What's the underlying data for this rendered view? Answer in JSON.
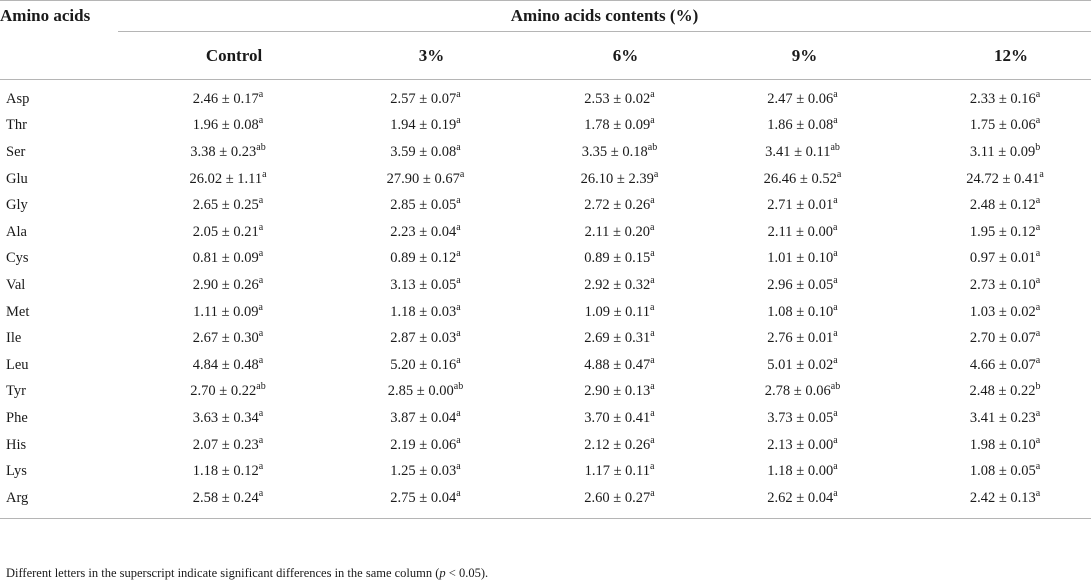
{
  "table": {
    "row_header": "Amino acids",
    "group_header": "Amino acids contents (%)",
    "columns": [
      "Control",
      "3%",
      "6%",
      "9%",
      "12%"
    ],
    "rows": [
      {
        "name": "Asp",
        "cells": [
          {
            "v": "2.46 ± 0.17",
            "s": "a"
          },
          {
            "v": "2.57 ± 0.07",
            "s": "a"
          },
          {
            "v": "2.53 ± 0.02",
            "s": "a"
          },
          {
            "v": "2.47 ± 0.06",
            "s": "a"
          },
          {
            "v": "2.33 ± 0.16",
            "s": "a"
          }
        ]
      },
      {
        "name": "Thr",
        "cells": [
          {
            "v": "1.96 ± 0.08",
            "s": "a"
          },
          {
            "v": "1.94 ± 0.19",
            "s": "a"
          },
          {
            "v": "1.78 ± 0.09",
            "s": "a"
          },
          {
            "v": "1.86 ± 0.08",
            "s": "a"
          },
          {
            "v": "1.75 ± 0.06",
            "s": "a"
          }
        ]
      },
      {
        "name": "Ser",
        "cells": [
          {
            "v": "3.38 ± 0.23",
            "s": "ab"
          },
          {
            "v": "3.59 ± 0.08",
            "s": "a"
          },
          {
            "v": "3.35 ± 0.18",
            "s": "ab"
          },
          {
            "v": "3.41 ± 0.11",
            "s": "ab"
          },
          {
            "v": "3.11 ± 0.09",
            "s": "b"
          }
        ]
      },
      {
        "name": "Glu",
        "cells": [
          {
            "v": "26.02 ± 1.11",
            "s": "a"
          },
          {
            "v": "27.90 ± 0.67",
            "s": "a"
          },
          {
            "v": "26.10 ± 2.39",
            "s": "a"
          },
          {
            "v": "26.46 ± 0.52",
            "s": "a"
          },
          {
            "v": "24.72 ± 0.41",
            "s": "a"
          }
        ]
      },
      {
        "name": "Gly",
        "cells": [
          {
            "v": "2.65 ± 0.25",
            "s": "a"
          },
          {
            "v": "2.85 ± 0.05",
            "s": "a"
          },
          {
            "v": "2.72 ± 0.26",
            "s": "a"
          },
          {
            "v": "2.71 ± 0.01",
            "s": "a"
          },
          {
            "v": "2.48 ± 0.12",
            "s": "a"
          }
        ]
      },
      {
        "name": "Ala",
        "cells": [
          {
            "v": "2.05 ± 0.21",
            "s": "a"
          },
          {
            "v": "2.23 ± 0.04",
            "s": "a"
          },
          {
            "v": "2.11 ± 0.20",
            "s": "a"
          },
          {
            "v": "2.11 ± 0.00",
            "s": "a"
          },
          {
            "v": "1.95 ± 0.12",
            "s": "a"
          }
        ]
      },
      {
        "name": "Cys",
        "cells": [
          {
            "v": "0.81 ± 0.09",
            "s": "a"
          },
          {
            "v": "0.89 ± 0.12",
            "s": "a"
          },
          {
            "v": "0.89 ± 0.15",
            "s": "a"
          },
          {
            "v": "1.01 ± 0.10",
            "s": "a"
          },
          {
            "v": "0.97 ± 0.01",
            "s": "a"
          }
        ]
      },
      {
        "name": "Val",
        "cells": [
          {
            "v": "2.90 ± 0.26",
            "s": "a"
          },
          {
            "v": "3.13 ± 0.05",
            "s": "a"
          },
          {
            "v": "2.92 ± 0.32",
            "s": "a"
          },
          {
            "v": "2.96 ± 0.05",
            "s": "a"
          },
          {
            "v": "2.73 ± 0.10",
            "s": "a"
          }
        ]
      },
      {
        "name": "Met",
        "cells": [
          {
            "v": "1.11 ± 0.09",
            "s": "a"
          },
          {
            "v": "1.18 ± 0.03",
            "s": "a"
          },
          {
            "v": "1.09 ± 0.11",
            "s": "a"
          },
          {
            "v": "1.08 ± 0.10",
            "s": "a"
          },
          {
            "v": "1.03 ± 0.02",
            "s": "a"
          }
        ]
      },
      {
        "name": "Ile",
        "cells": [
          {
            "v": "2.67 ± 0.30",
            "s": "a"
          },
          {
            "v": "2.87 ± 0.03",
            "s": "a"
          },
          {
            "v": "2.69 ± 0.31",
            "s": "a"
          },
          {
            "v": "2.76 ± 0.01",
            "s": "a"
          },
          {
            "v": "2.70 ± 0.07",
            "s": "a"
          }
        ]
      },
      {
        "name": "Leu",
        "cells": [
          {
            "v": "4.84 ± 0.48",
            "s": "a"
          },
          {
            "v": "5.20 ± 0.16",
            "s": "a"
          },
          {
            "v": "4.88 ± 0.47",
            "s": "a"
          },
          {
            "v": "5.01 ± 0.02",
            "s": "a"
          },
          {
            "v": "4.66 ± 0.07",
            "s": "a"
          }
        ]
      },
      {
        "name": "Tyr",
        "cells": [
          {
            "v": "2.70 ± 0.22",
            "s": "ab"
          },
          {
            "v": "2.85 ± 0.00",
            "s": "ab"
          },
          {
            "v": "2.90 ± 0.13",
            "s": "a"
          },
          {
            "v": "2.78 ± 0.06",
            "s": "ab"
          },
          {
            "v": "2.48 ± 0.22",
            "s": "b"
          }
        ]
      },
      {
        "name": "Phe",
        "cells": [
          {
            "v": "3.63 ± 0.34",
            "s": "a"
          },
          {
            "v": "3.87 ± 0.04",
            "s": "a"
          },
          {
            "v": "3.70 ± 0.41",
            "s": "a"
          },
          {
            "v": "3.73 ± 0.05",
            "s": "a"
          },
          {
            "v": "3.41 ± 0.23",
            "s": "a"
          }
        ]
      },
      {
        "name": "His",
        "cells": [
          {
            "v": "2.07 ± 0.23",
            "s": "a"
          },
          {
            "v": "2.19 ± 0.06",
            "s": "a"
          },
          {
            "v": "2.12 ± 0.26",
            "s": "a"
          },
          {
            "v": "2.13 ± 0.00",
            "s": "a"
          },
          {
            "v": "1.98 ± 0.10",
            "s": "a"
          }
        ]
      },
      {
        "name": "Lys",
        "cells": [
          {
            "v": "1.18 ± 0.12",
            "s": "a"
          },
          {
            "v": "1.25 ± 0.03",
            "s": "a"
          },
          {
            "v": "1.17 ± 0.11",
            "s": "a"
          },
          {
            "v": "1.18 ± 0.00",
            "s": "a"
          },
          {
            "v": "1.08 ± 0.05",
            "s": "a"
          }
        ]
      },
      {
        "name": "Arg",
        "cells": [
          {
            "v": "2.58 ± 0.24",
            "s": "a"
          },
          {
            "v": "2.75 ± 0.04",
            "s": "a"
          },
          {
            "v": "2.60 ± 0.27",
            "s": "a"
          },
          {
            "v": "2.62 ± 0.04",
            "s": "a"
          },
          {
            "v": "2.42 ± 0.13",
            "s": "a"
          }
        ]
      }
    ]
  },
  "footnote": {
    "text_before": "Different letters in the superscript indicate significant differences in the same column (",
    "p_symbol": "p",
    "text_after": " < 0.05)."
  }
}
